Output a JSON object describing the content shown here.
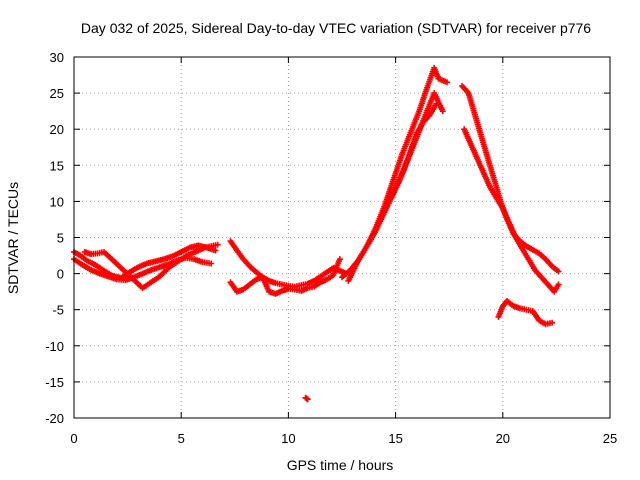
{
  "chart_data": {
    "type": "scatter",
    "title": "Day 032 of 2025, Sidereal Day-to-day VTEC variation (SDTVAR) for receiver p776",
    "xlabel": "GPS time / hours",
    "ylabel": "SDTVAR / TECUs",
    "xlim": [
      0,
      25
    ],
    "ylim": [
      -20,
      30
    ],
    "xticks": [
      0,
      5,
      10,
      15,
      20,
      25
    ],
    "yticks": [
      -20,
      -15,
      -10,
      -5,
      0,
      5,
      10,
      15,
      20,
      25,
      30
    ],
    "xtick_labels": [
      "0",
      "5",
      "10",
      "15",
      "20",
      "25"
    ],
    "ytick_labels": [
      "-20",
      "-15",
      "-10",
      "-5",
      "0",
      "5",
      "10",
      "15",
      "20",
      "25",
      "30"
    ],
    "grid": true,
    "marker": "+",
    "color": "#ff0000",
    "series": [
      {
        "name": "track-a",
        "x": [
          0.0,
          0.3,
          0.6,
          1.0,
          1.4,
          1.8,
          2.2,
          2.6,
          3.0,
          3.4,
          3.8,
          4.2,
          4.6,
          5.0,
          5.4,
          5.8,
          6.2,
          6.6
        ],
        "y": [
          3.0,
          2.5,
          1.8,
          1.2,
          0.4,
          -0.3,
          -0.6,
          0.2,
          0.9,
          1.4,
          1.7,
          2.0,
          2.4,
          3.0,
          3.6,
          3.9,
          3.6,
          3.2
        ]
      },
      {
        "name": "track-b",
        "x": [
          0.0,
          0.4,
          0.8,
          1.2,
          1.6,
          2.0,
          2.4,
          2.8,
          3.2,
          3.6,
          4.0,
          4.4,
          4.8,
          5.2,
          5.6,
          6.0,
          6.4
        ],
        "y": [
          2.0,
          1.2,
          0.5,
          0.0,
          -0.4,
          -0.8,
          -0.9,
          -0.5,
          0.0,
          0.5,
          0.9,
          1.3,
          1.8,
          2.2,
          2.0,
          1.6,
          1.4
        ]
      },
      {
        "name": "track-c",
        "x": [
          0.5,
          0.8,
          1.1,
          1.4,
          3.2,
          3.6,
          4.0,
          4.3,
          4.6,
          4.9,
          5.2,
          5.5,
          5.8,
          6.1,
          6.4,
          6.7
        ],
        "y": [
          3.0,
          2.7,
          2.8,
          3.0,
          -2.0,
          -1.2,
          -0.4,
          0.5,
          1.2,
          1.8,
          2.4,
          2.8,
          3.2,
          3.6,
          3.8,
          4.0
        ]
      },
      {
        "name": "track-d",
        "x": [
          7.3,
          7.6,
          7.9,
          8.2,
          8.5,
          8.8,
          9.1,
          9.4,
          9.7,
          10.0,
          10.3,
          10.6,
          10.9,
          11.2,
          11.5,
          11.8,
          12.1,
          12.4,
          12.7
        ],
        "y": [
          4.5,
          3.2,
          2.0,
          1.0,
          0.2,
          -0.5,
          -1.0,
          -1.3,
          -1.5,
          -1.7,
          -1.8,
          -1.6,
          -1.4,
          -1.0,
          -0.4,
          0.2,
          0.8,
          0.4,
          0.0
        ]
      },
      {
        "name": "track-e",
        "x": [
          7.3,
          7.6,
          7.9,
          8.2,
          8.5,
          8.8,
          9.1,
          9.4,
          9.7,
          10.0,
          10.3,
          10.6,
          10.9,
          11.2,
          11.5,
          11.8,
          12.1,
          12.4
        ],
        "y": [
          -1.2,
          -2.5,
          -2.2,
          -1.5,
          -0.8,
          -0.5,
          -2.5,
          -2.8,
          -2.4,
          -2.1,
          -2.2,
          -2.4,
          -2.0,
          -1.8,
          -1.2,
          -0.8,
          -0.2,
          2.0
        ]
      },
      {
        "name": "track-f",
        "x": [
          12.5,
          12.9,
          13.3,
          13.7,
          14.1,
          14.5,
          14.9,
          15.3,
          15.7,
          16.1,
          16.5,
          16.8,
          17.0,
          17.4
        ],
        "y": [
          -0.5,
          0.5,
          2.0,
          4.0,
          6.5,
          9.5,
          13.0,
          16.5,
          19.5,
          22.5,
          26.0,
          28.5,
          27.0,
          26.5
        ]
      },
      {
        "name": "track-g",
        "x": [
          12.8,
          13.2,
          13.6,
          14.0,
          14.4,
          14.8,
          15.2,
          15.6,
          16.0,
          16.4,
          16.8,
          17.2
        ],
        "y": [
          -1.0,
          1.5,
          3.5,
          5.5,
          8.0,
          10.5,
          13.0,
          16.0,
          19.0,
          22.0,
          25.0,
          22.5
        ]
      },
      {
        "name": "track-h",
        "x": [
          14.8,
          15.1,
          15.4,
          15.7,
          16.0,
          16.3,
          16.6,
          16.9
        ],
        "y": [
          10.5,
          12.5,
          14.5,
          17.0,
          19.5,
          21.0,
          22.0,
          23.5
        ]
      },
      {
        "name": "track-i",
        "x": [
          18.1,
          18.4,
          18.7,
          19.0,
          19.3,
          19.6,
          19.9,
          20.2,
          20.5,
          20.8,
          21.1,
          21.4,
          21.7,
          22.0,
          22.3,
          22.6
        ],
        "y": [
          26.0,
          25.0,
          22.0,
          19.0,
          16.0,
          13.0,
          10.0,
          7.5,
          5.5,
          4.5,
          3.8,
          3.3,
          2.8,
          2.0,
          1.0,
          0.3
        ]
      },
      {
        "name": "track-j",
        "x": [
          18.2,
          18.5,
          18.8,
          19.1,
          19.4,
          19.7,
          20.0,
          20.3,
          20.6,
          20.9,
          21.2,
          21.5,
          21.8,
          22.1,
          22.4,
          22.6
        ],
        "y": [
          20.0,
          18.0,
          16.0,
          14.0,
          12.0,
          10.5,
          9.0,
          7.0,
          5.0,
          3.5,
          2.0,
          0.5,
          -0.5,
          -1.5,
          -2.5,
          -1.5
        ]
      },
      {
        "name": "track-k",
        "x": [
          19.8,
          20.0,
          20.2,
          20.5,
          20.8,
          21.1,
          21.4,
          21.7,
          22.0,
          22.3
        ],
        "y": [
          -6.0,
          -4.5,
          -3.8,
          -4.5,
          -4.8,
          -5.0,
          -5.2,
          -6.5,
          -7.0,
          -6.8
        ]
      },
      {
        "name": "outlier",
        "x": [
          10.8,
          10.9
        ],
        "y": [
          -17.2,
          -17.4
        ]
      }
    ]
  }
}
